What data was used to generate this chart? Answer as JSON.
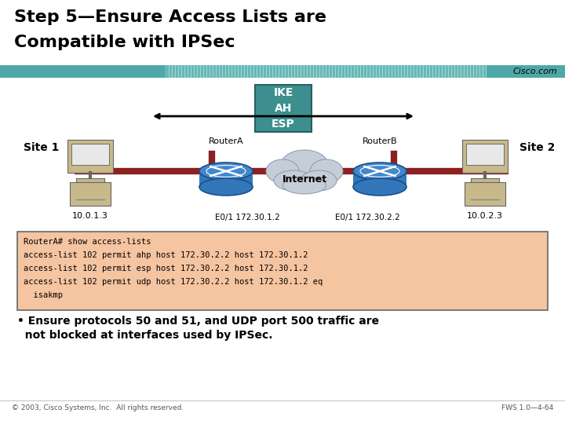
{
  "title_line1": "Step 5—Ensure Access Lists are",
  "title_line2": "Compatible with IPSec",
  "title_fontsize": 16,
  "header_bar_color": "#4fa8a8",
  "bg_color": "#ffffff",
  "cisco_text": "Cisco.com",
  "ike_box_color": "#3d8f8f",
  "ike_text": "IKE\nAH\nESP",
  "site1_label": "Site 1",
  "site2_label": "Site 2",
  "ip_site1": "10.0.1.3",
  "ip_site2": "10.0.2.3",
  "routerA_label": "RouterA",
  "routerB_label": "RouterB",
  "internet_label": "Internet",
  "e01_left": "E0/1 172.30.1.2",
  "e01_right": "E0/1 172.30.2.2",
  "code_bg": "#f5c4a0",
  "code_border": "#666666",
  "code_lines": [
    "RouterA# show access-lists",
    "access-list 102 permit ahp host 172.30.2.2 host 172.30.1.2",
    "access-list 102 permit esp host 172.30.2.2 host 172.30.1.2",
    "access-list 102 permit udp host 172.30.2.2 host 172.30.1.2 eq",
    "  isakmp"
  ],
  "bullet_line1": "• Ensure protocols 50 and 51, and UDP port 500 traffic are",
  "bullet_line2": "  not blocked at interfaces used by IPSec.",
  "footer_left": "© 2003, Cisco Systems, Inc.  All rights reserved.",
  "footer_right": "FWS 1.0—4-64",
  "line_color": "#8b2020",
  "router_body_color": "#5b9bd5",
  "router_edge_color": "#1a4f8a",
  "computer_body_color": "#c8b98a",
  "computer_screen_color": "#e8e8e8",
  "cloud_color": "#c5cdd8",
  "cloud_edge_color": "#8899aa"
}
